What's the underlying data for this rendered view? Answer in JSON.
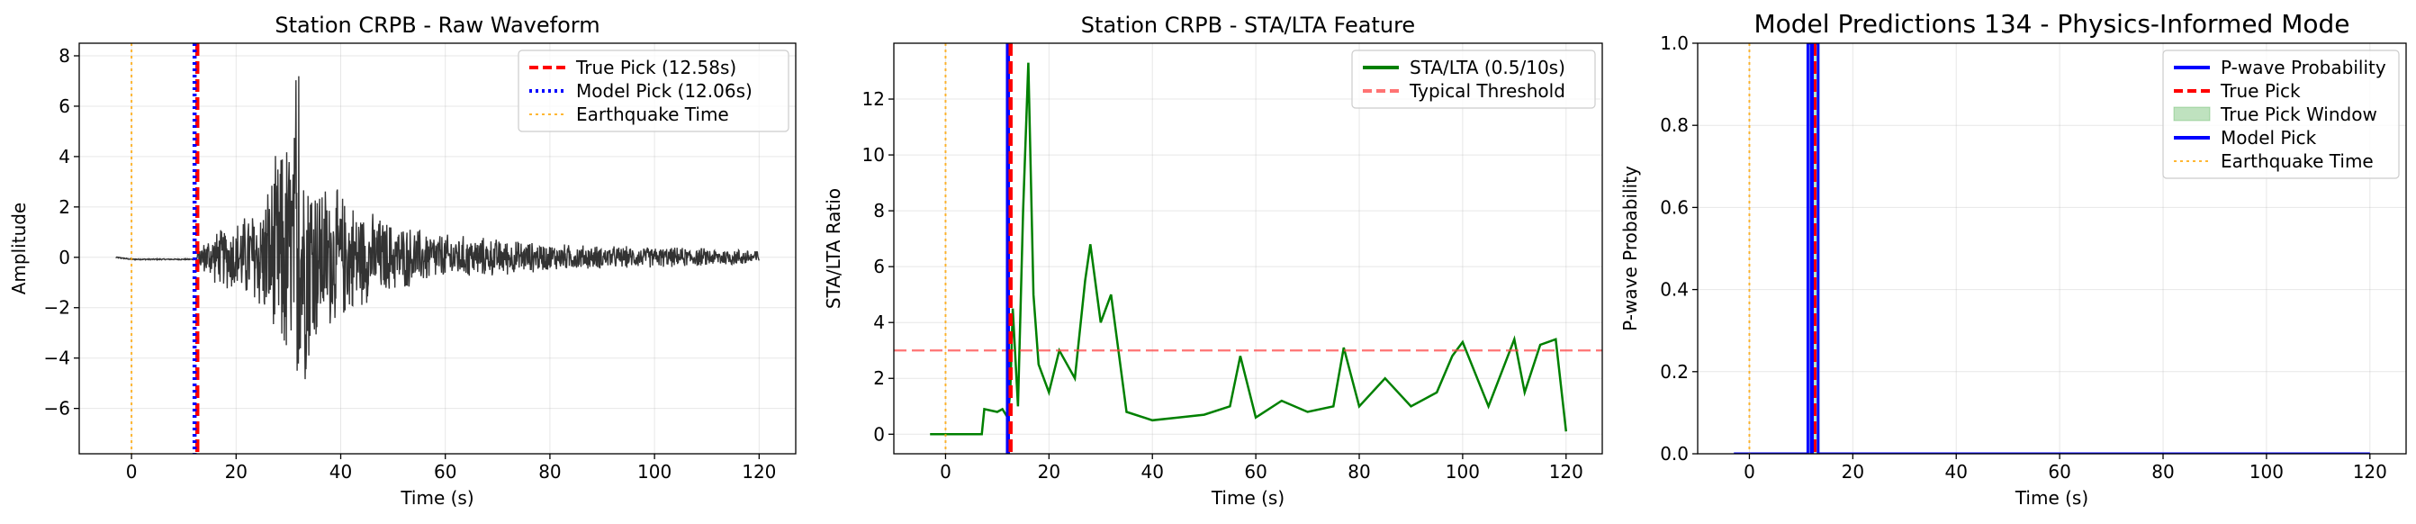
{
  "chart_data": [
    {
      "type": "line",
      "title": "Station CRPB - Raw Waveform",
      "xlabel": "Time (s)",
      "ylabel": "Amplitude",
      "xlim": [
        -10,
        127
      ],
      "ylim": [
        -7.8,
        8.5
      ],
      "xticks": [
        0,
        20,
        40,
        60,
        80,
        100,
        120
      ],
      "yticks": [
        -6,
        -4,
        -2,
        0,
        2,
        4,
        6,
        8
      ],
      "grid": true,
      "legend_position": "top-right",
      "waveform_envelope": {
        "x": [
          -3,
          5,
          10,
          12.5,
          15,
          20,
          25,
          28,
          30,
          32,
          34,
          36,
          40,
          45,
          50,
          60,
          70,
          80,
          90,
          100,
          110,
          120
        ],
        "amplitude": [
          0.03,
          0.05,
          0.05,
          0.3,
          1.0,
          1.6,
          2.5,
          4.5,
          5.5,
          6.0,
          5.0,
          3.5,
          2.8,
          2.0,
          1.5,
          1.0,
          0.8,
          0.6,
          0.5,
          0.45,
          0.4,
          0.35
        ]
      },
      "series": [
        {
          "name": "True Pick (12.58s)",
          "kind": "vline",
          "x": 12.58,
          "color": "#ff0000",
          "style": "dashed"
        },
        {
          "name": "Model Pick (12.06s)",
          "kind": "vline",
          "x": 12.06,
          "color": "#0000ff",
          "style": "dotted"
        },
        {
          "name": "Earthquake Time",
          "kind": "vline",
          "x": 0,
          "color": "#ffa500",
          "style": "dotted"
        }
      ]
    },
    {
      "type": "line",
      "title": "Station CRPB - STA/LTA Feature",
      "xlabel": "Time (s)",
      "ylabel": "STA/LTA Ratio",
      "xlim": [
        -10,
        127
      ],
      "ylim": [
        -0.7,
        14
      ],
      "xticks": [
        0,
        20,
        40,
        60,
        80,
        100,
        120
      ],
      "yticks": [
        0,
        2,
        4,
        6,
        8,
        10,
        12
      ],
      "grid": true,
      "legend_position": "top-right",
      "series": [
        {
          "name": "STA/LTA (0.5/10s)",
          "kind": "line",
          "color": "#008000",
          "x": [
            -3,
            7,
            7.5,
            10,
            11,
            12,
            12.5,
            13,
            14,
            15,
            16,
            17,
            18,
            20,
            22,
            25,
            27,
            28,
            30,
            32,
            35,
            40,
            45,
            50,
            55,
            57,
            60,
            65,
            70,
            75,
            77,
            80,
            85,
            90,
            95,
            98,
            100,
            105,
            110,
            112,
            115,
            118,
            120
          ],
          "y": [
            0,
            0,
            0.9,
            0.8,
            0.9,
            0.6,
            1.5,
            4.5,
            1.0,
            8.0,
            13.3,
            5.0,
            2.5,
            1.5,
            3.0,
            2.0,
            5.5,
            6.8,
            4.0,
            5.0,
            0.8,
            0.5,
            0.6,
            0.7,
            1.0,
            2.8,
            0.6,
            1.2,
            0.8,
            1.0,
            3.1,
            1.0,
            2.0,
            1.0,
            1.5,
            2.8,
            3.3,
            1.0,
            3.4,
            1.5,
            3.2,
            3.4,
            0.1
          ]
        },
        {
          "name": "Typical Threshold",
          "kind": "hline",
          "y": 3,
          "color": "#ff4444",
          "style": "dashed"
        },
        {
          "name": "model_pick",
          "kind": "vline",
          "x": 12.06,
          "color": "#0000ff",
          "style": "solid"
        },
        {
          "name": "true_pick",
          "kind": "vline",
          "x": 12.58,
          "color": "#ff0000",
          "style": "dashed"
        },
        {
          "name": "earthquake_time",
          "kind": "vline",
          "x": 0,
          "color": "#ffa500",
          "style": "dotted"
        }
      ]
    },
    {
      "type": "line",
      "title": "Model Predictions 134 - Physics-Informed Mode",
      "xlabel": "Time (s)",
      "ylabel": "P-wave Probability",
      "xlim": [
        -10,
        127
      ],
      "ylim": [
        0,
        1
      ],
      "xticks": [
        0,
        20,
        40,
        60,
        80,
        100,
        120
      ],
      "yticks": [
        0.0,
        0.2,
        0.4,
        0.6,
        0.8,
        1.0
      ],
      "grid": true,
      "legend_position": "top-right",
      "series": [
        {
          "name": "P-wave Probability",
          "kind": "line",
          "color": "#0000ff",
          "x": [
            -3,
            11.3,
            11.3,
            13.3,
            13.3,
            120
          ],
          "y": [
            0,
            0,
            1,
            1,
            0,
            0
          ]
        },
        {
          "name": "True Pick",
          "kind": "vline",
          "x": 12.58,
          "color": "#ff0000",
          "style": "dashed"
        },
        {
          "name": "True Pick Window",
          "kind": "span",
          "x0": 11.6,
          "x1": 13.6,
          "color": "#2ca02c"
        },
        {
          "name": "Model Pick",
          "kind": "vline",
          "x": 12.06,
          "color": "#0000ff",
          "style": "solid"
        },
        {
          "name": "Earthquake Time",
          "kind": "vline",
          "x": 0,
          "color": "#ffa500",
          "style": "dotted"
        }
      ]
    }
  ]
}
